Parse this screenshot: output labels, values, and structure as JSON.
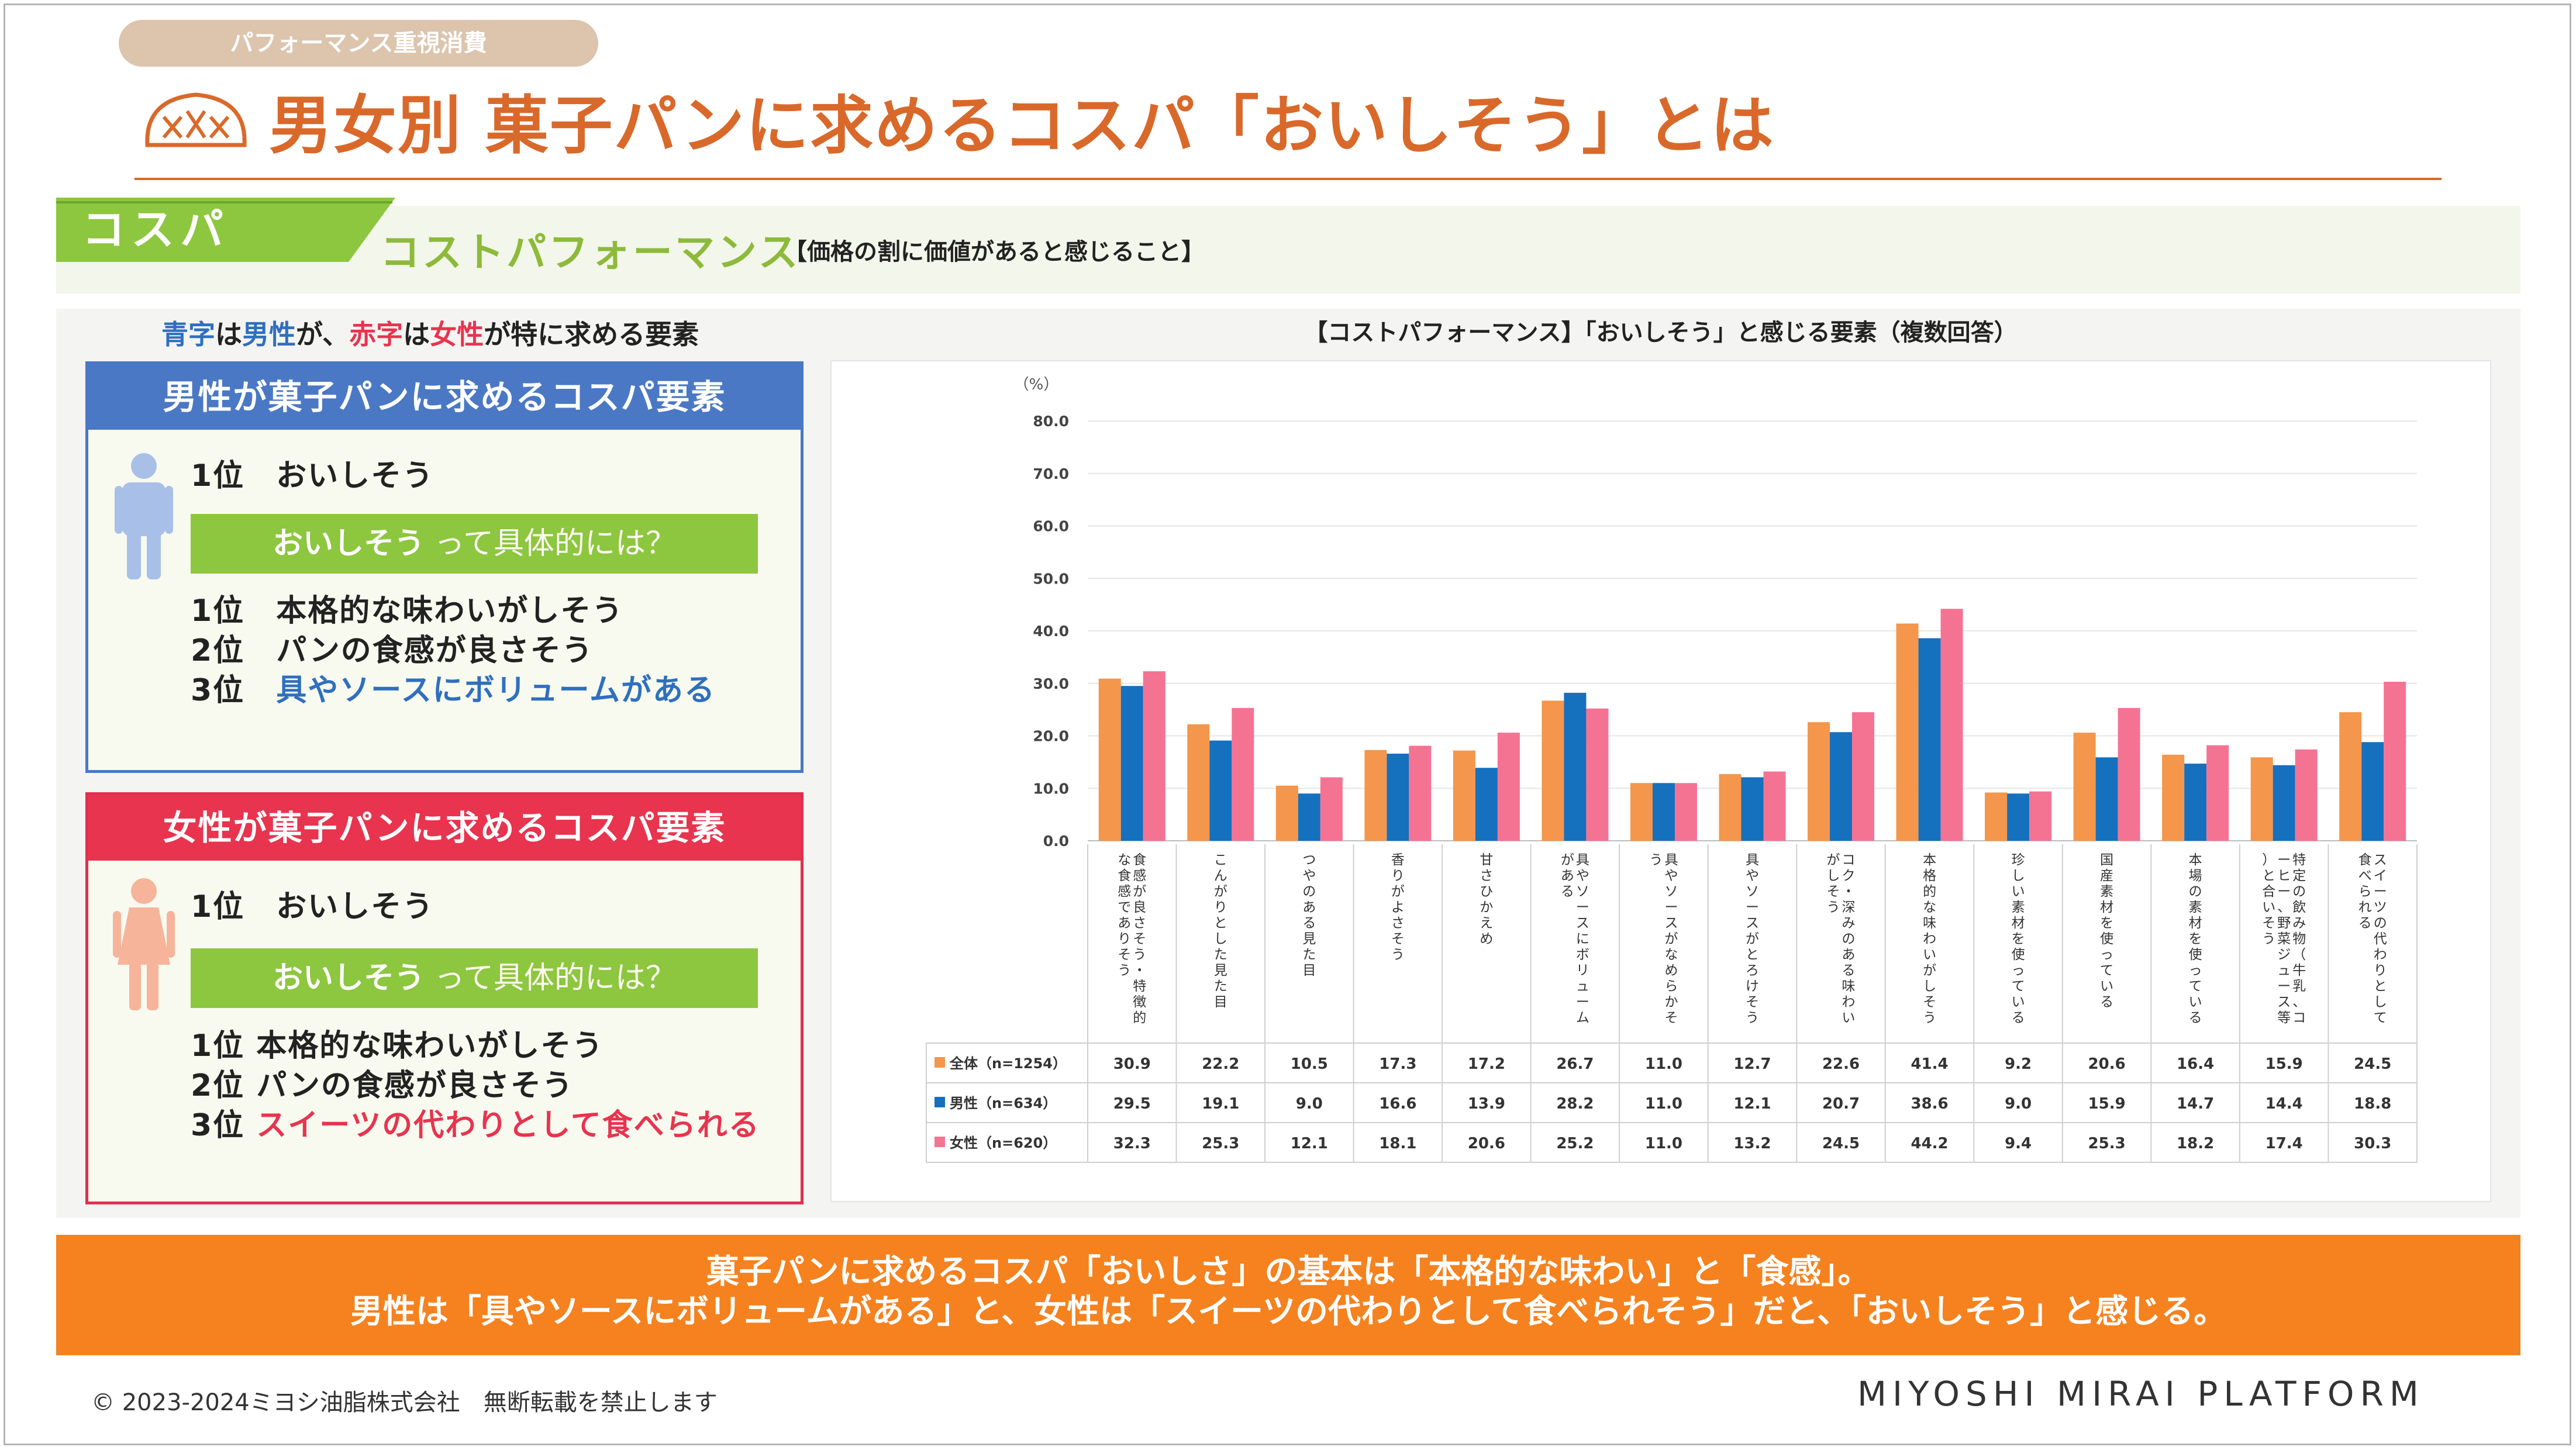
{
  "header": {
    "category": "パフォーマンス重視消費",
    "title": "男女別 菓子パンに求めるコスパ「おいしそう」とは"
  },
  "cospa": {
    "tag": "コスパ",
    "full": "コストパフォーマンス",
    "note": "【価格の割に価値があると感じること】"
  },
  "legend_note": {
    "part1": "青字",
    "part2": "は",
    "part3": "男性",
    "part4": "が、",
    "part5": "赤字",
    "part6": "は",
    "part7": "女性",
    "part8": "が特に求める要素"
  },
  "male_panel": {
    "title": "男性が菓子パンに求めるコスパ要素",
    "rank1": "1位　おいしそう",
    "question_bold": "おいしそう",
    "question_rest": " って具体的には？",
    "ranks": [
      {
        "rank": "1位",
        "text": "本格的な味わいがしそう"
      },
      {
        "rank": "2位",
        "text": "パンの食感が良さそう"
      },
      {
        "rank": "3位",
        "text": "具やソースにボリュームがある"
      }
    ]
  },
  "female_panel": {
    "title": "女性が菓子パンに求めるコスパ要素",
    "rank1": "1位　おいしそう",
    "question_bold": "おいしそう",
    "question_rest": " って具体的には？",
    "ranks": [
      {
        "rank": "1位",
        "text": "本格的な味わいがしそう"
      },
      {
        "rank": "2位",
        "text": "パンの食感が良さそう"
      },
      {
        "rank": "3位",
        "text": "スイーツの代わりとして食べられる"
      }
    ]
  },
  "colors": {
    "accent_orange": "#d9692a",
    "male_blue": "#4a78c4",
    "female_red": "#e8344e",
    "green": "#8dc63f",
    "series_all": "#f4964b",
    "series_male": "#1570be",
    "series_female": "#f47393",
    "band_orange": "#f5821f"
  },
  "chart_data": {
    "type": "bar",
    "title": "【コストパフォーマンス】「おいしそう」と感じる要素（複数回答）",
    "ylabel": "（%）",
    "ylim": [
      0,
      80
    ],
    "yticks": [
      "0.0",
      "10.0",
      "20.0",
      "30.0",
      "40.0",
      "50.0",
      "60.0",
      "70.0",
      "80.0"
    ],
    "grid": true,
    "categories": [
      "食感が良さそう・特徴的な食感でありそう",
      "こんがりとした見た目",
      "つやのある見た目",
      "香りがよさそう",
      "甘さひかえめ",
      "具やソースにボリュームがある",
      "具やソースがなめらかそう",
      "具やソースがとろけそう",
      "コク・深みのある味わいがしそう",
      "本格的な味わいがしそう",
      "珍しい素材を使っている",
      "国産素材を使っている",
      "本場の素材を使っている",
      "特定の飲み物（牛乳、コーヒー、野菜ジュース等）と合いそう",
      "スイーツの代わりとして食べられる"
    ],
    "series": [
      {
        "name": "全体（n=1254）",
        "color": "#f4964b",
        "values": [
          30.9,
          22.2,
          10.5,
          17.3,
          17.2,
          26.7,
          11.0,
          12.7,
          22.6,
          41.4,
          9.2,
          20.6,
          16.4,
          15.9,
          24.5
        ],
        "labels": [
          "30.9",
          "22.2",
          "10.5",
          "17.3",
          "17.2",
          "26.7",
          "11.0",
          "12.7",
          "22.6",
          "41.4",
          "9.2",
          "20.6",
          "16.4",
          "15.9",
          "24.5"
        ]
      },
      {
        "name": "男性（n=634）",
        "color": "#1570be",
        "values": [
          29.5,
          19.1,
          9.0,
          16.6,
          13.9,
          28.2,
          11.0,
          12.1,
          20.7,
          38.6,
          9.0,
          15.9,
          14.7,
          14.4,
          18.8
        ],
        "labels": [
          "29.5",
          "19.1",
          "9.0",
          "16.6",
          "13.9",
          "28.2",
          "11.0",
          "12.1",
          "20.7",
          "38.6",
          "9.0",
          "15.9",
          "14.7",
          "14.4",
          "18.8"
        ]
      },
      {
        "name": "女性（n=620）",
        "color": "#f47393",
        "values": [
          32.3,
          25.3,
          12.1,
          18.1,
          20.6,
          25.2,
          11.0,
          13.2,
          24.5,
          44.2,
          9.4,
          25.3,
          18.2,
          17.4,
          30.3
        ],
        "labels": [
          "32.3",
          "25.3",
          "12.1",
          "18.1",
          "20.6",
          "25.2",
          "11.0",
          "13.2",
          "24.5",
          "44.2",
          "9.4",
          "25.3",
          "18.2",
          "17.4",
          "30.3"
        ]
      }
    ]
  },
  "conclusion": {
    "line1": "菓子パンに求めるコスパ「おいしさ」の基本は「本格的な味わい」と「食感」。",
    "line2": "男性は「具やソースにボリュームがある」と、女性は「スイーツの代わりとして食べられそう」だと、「おいしそう」と感じる。"
  },
  "footer": {
    "copyright": "© 2023-2024ミヨシ油脂株式会社　無断転載を禁止します",
    "brand": "MIYOSHI MIRAI PLATFORM"
  }
}
